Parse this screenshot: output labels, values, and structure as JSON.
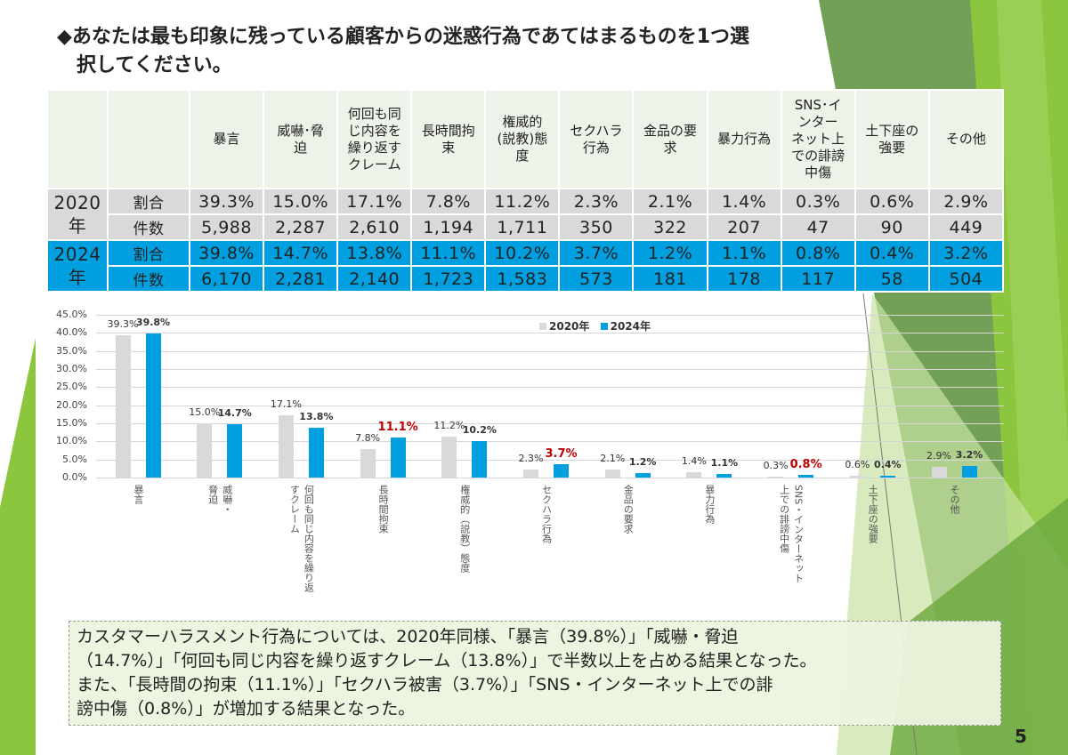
{
  "title": "◆あなたは最も印象に残っている顧客からの迷惑行為であてはまるものを1つ選\n　択してください。",
  "table": {
    "columns": [
      "暴言",
      "威嚇･脅\n迫",
      "何回も同\nじ内容を\n繰り返す\nクレーム",
      "長時間拘\n束",
      "権威的\n(説教)態\n度",
      "セクハラ\n行為",
      "金品の要\n求",
      "暴力行為",
      "SNS･イ\nンター\nネット上\nでの誹謗\n中傷",
      "土下座の\n強要",
      "その他"
    ],
    "rows": [
      {
        "year": "2020\n年",
        "label": "割合",
        "values": [
          "39.3%",
          "15.0%",
          "17.1%",
          "7.8%",
          "11.2%",
          "2.3%",
          "2.1%",
          "1.4%",
          "0.3%",
          "0.6%",
          "2.9%"
        ]
      },
      {
        "label": "件数",
        "values": [
          "5,988",
          "2,287",
          "2,610",
          "1,194",
          "1,711",
          "350",
          "322",
          "207",
          "47",
          "90",
          "449"
        ]
      },
      {
        "year": "2024\n年",
        "label": "割合",
        "values": [
          "39.8%",
          "14.7%",
          "13.8%",
          "11.1%",
          "10.2%",
          "3.7%",
          "1.2%",
          "1.1%",
          "0.8%",
          "0.4%",
          "3.2%"
        ]
      },
      {
        "label": "件数",
        "values": [
          "6,170",
          "2,281",
          "2,140",
          "1,723",
          "1,583",
          "573",
          "181",
          "178",
          "117",
          "58",
          "504"
        ]
      }
    ]
  },
  "chart_data": {
    "type": "bar",
    "categories": [
      "暴言",
      "威嚇・\n脅迫",
      "何回も同じ内容を繰り返\nすクレーム",
      "長時間拘束",
      "権威的（説教）態度",
      "セクハラ行為",
      "金品の要求",
      "暴力行為",
      "SNS・インターネット\n上での誹謗中傷",
      "土下座の強要",
      "その他"
    ],
    "series": [
      {
        "name": "2020年",
        "color": "#d9d9d9",
        "values": [
          39.3,
          15.0,
          17.1,
          7.8,
          11.2,
          2.3,
          2.1,
          1.4,
          0.3,
          0.6,
          2.9
        ],
        "labels": [
          "39.3%",
          "15.0%",
          "17.1%",
          "7.8%",
          "11.2%",
          "2.3%",
          "2.1%",
          "1.4%",
          "0.3%",
          "0.6%",
          "2.9%"
        ]
      },
      {
        "name": "2024年",
        "color": "#00a0e0",
        "values": [
          39.8,
          14.7,
          13.8,
          11.1,
          10.2,
          3.7,
          1.2,
          1.1,
          0.8,
          0.4,
          3.2
        ],
        "labels": [
          "39.8%",
          "14.7%",
          "13.8%",
          "11.1%",
          "10.2%",
          "3.7%",
          "1.2%",
          "1.1%",
          "0.8%",
          "0.4%",
          "3.2%"
        ],
        "highlight_indices": [
          3,
          5,
          8
        ],
        "highlight_color": "#c00000"
      }
    ],
    "yticks": [
      "0.0%",
      "5.0%",
      "10.0%",
      "15.0%",
      "20.0%",
      "25.0%",
      "30.0%",
      "35.0%",
      "40.0%",
      "45.0%"
    ],
    "ylim": [
      0,
      45
    ],
    "grid": true,
    "legend": "top-center"
  },
  "note": "カスタマーハラスメント行為については、2020年同様、「暴言（39.8%）」「威嚇・脅迫\n（14.7%）」「何回も同じ内容を繰り返すクレーム（13.8%）」で半数以上を占める結果となった。\nまた、「長時間の拘束（11.1%）」「セクハラ被害（3.7%）」「SNS・インターネット上での誹\n謗中傷（0.8%）」が増加する結果となった。",
  "page_number": "5"
}
